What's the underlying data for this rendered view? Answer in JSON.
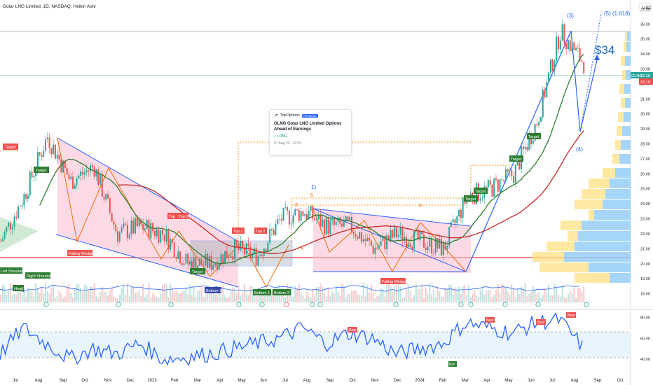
{
  "header": {
    "title": "Golar LNG Limited, 1D, NASDAQ, Heikin Ashi",
    "currency": "USD"
  },
  "price_axis": {
    "ticks": [
      "37.00",
      "36.00",
      "35.00",
      "34.00",
      "33.00",
      "32.00",
      "31.00",
      "30.00",
      "29.00",
      "28.00",
      "27.00",
      "26.00",
      "25.00",
      "24.00",
      "23.00",
      "22.00",
      "21.00",
      "20.00",
      "19.00",
      "18.00",
      "17.00"
    ],
    "last_price": "33.38",
    "last_label": "GLNG",
    "prev_price": "33.16"
  },
  "rsi_axis": {
    "ticks": [
      "80.00",
      "60.00",
      "40.00"
    ]
  },
  "time_axis": {
    "ticks": [
      "Jul",
      "Aug",
      "Sep",
      "Oct",
      "Nov",
      "Dec",
      "2023",
      "Feb",
      "Mar",
      "Apr",
      "May",
      "Jun",
      "Jul",
      "Aug",
      "Sep",
      "Oct",
      "Nov",
      "Dec",
      "2024",
      "Feb",
      "Mar",
      "Apr",
      "May",
      "Jun",
      "Jul",
      "Aug",
      "Sep",
      "Oct"
    ]
  },
  "annotations": {
    "target_left": "Target",
    "target_1": "Target",
    "target_2": "Target",
    "target_3": "Target",
    "target_4": "Target",
    "target_5": "Target",
    "target_6": "Target",
    "target_7": "Target",
    "left_shoulder": "Left Shoulder",
    "right_shoulder": "Right Shoulder",
    "head": "Head",
    "falling_wedge_1": "Falling Wedge",
    "falling_wedge_2": "Falling Wedge",
    "top_a": "Top",
    "top_b": "Top 2",
    "top_1": "Top 1",
    "top_2": "Top 2",
    "bottom_a": "Bottom 1",
    "bottom_1": "Bottom 1",
    "bottom_2": "Bottom 2",
    "wave_1": "1)",
    "wave_3": "(3)",
    "wave_4": "(4)",
    "wave_5": "(5) (1.618)",
    "price_target": "$34",
    "num_3": "3",
    "num_5": "5",
    "num_4": "4",
    "num_6": "6",
    "rsi_bear_1": "Bear",
    "rsi_bear_2": "Bear",
    "rsi_bear_3": "Bear",
    "rsi_bear_4": "Bear",
    "rsi_bear_5": "Bear",
    "rsi_bull": "Bull"
  },
  "idea_card": {
    "brand": "TopOptions",
    "badge": "PREMIUM",
    "title": "GLNG Golar LNG Limited Options Ahead of Earnings",
    "direction": "LONG",
    "date": "07 Aug 23 - 22:31"
  },
  "colors": {
    "up": "#26a69a",
    "down": "#ef5350",
    "ma_green": "#2e7d32",
    "ma_red": "#c62828",
    "rsi": "#2962ff",
    "pattern": "#2962ff",
    "wedge_fill": "#f8bbd0"
  },
  "chart_data": {
    "type": "line",
    "title": "Golar LNG Limited, 1D, NASDAQ, Heikin Ashi",
    "xlabel": "",
    "ylabel": "",
    "ylim": [
      17,
      37.6
    ],
    "x": [
      "2022-07",
      "2022-08",
      "2022-09",
      "2022-10",
      "2022-11",
      "2022-12",
      "2023-01",
      "2023-02",
      "2023-03",
      "2023-04",
      "2023-05",
      "2023-06",
      "2023-07",
      "2023-08",
      "2023-09",
      "2023-10",
      "2023-11",
      "2023-12",
      "2024-01",
      "2024-02",
      "2024-03",
      "2024-04",
      "2024-05",
      "2024-06",
      "2024-07",
      "2024-08"
    ],
    "series": [
      {
        "values": [
          21.5,
          24.5,
          28.5,
          25.5,
          26.5,
          22.0,
          22.5,
          22.0,
          20.0,
          20.0,
          21.0,
          20.5,
          23.0,
          23.5,
          22.5,
          22.5,
          21.0,
          22.0,
          21.5,
          21.0,
          24.5,
          25.0,
          26.0,
          29.5,
          35.5,
          33.4
        ]
      },
      {
        "name": "RSI",
        "values": [
          45,
          70,
          55,
          40,
          50,
          45,
          55,
          40,
          42,
          45,
          50,
          55,
          60,
          70,
          55,
          65,
          60,
          45,
          50,
          55,
          75,
          70,
          65,
          75,
          78,
          52
        ]
      }
    ],
    "rsi_ylim": [
      30,
      85
    ],
    "grid": true
  }
}
